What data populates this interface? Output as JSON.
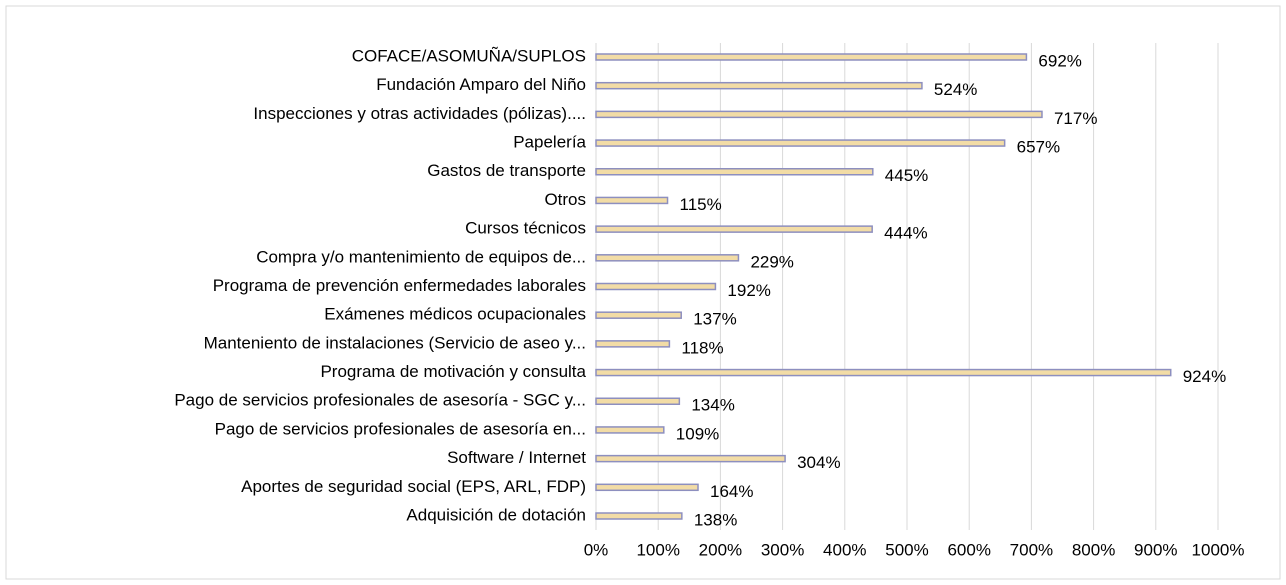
{
  "chart_data": {
    "type": "bar",
    "orientation": "horizontal",
    "categories": [
      "COFACE/ASOMUÑA/SUPLOS",
      "Fundación Amparo del Niño",
      "Inspecciones y otras actividades (pólizas)....",
      "Papelería",
      "Gastos de transporte",
      "Otros",
      "Cursos técnicos",
      "Compra y/o mantenimiento de equipos de...",
      "Programa de prevención enfermedades laborales",
      "Exámenes médicos ocupacionales",
      "Manteniento de instalaciones (Servicio de aseo y...",
      "Programa de motivación y consulta",
      "Pago de servicios profesionales de asesoría - SGC y...",
      "Pago de servicios profesionales de asesoría en...",
      "Software / Internet",
      "Aportes de seguridad social (EPS, ARL, FDP)",
      "Adquisición de dotación"
    ],
    "values": [
      692,
      524,
      717,
      657,
      445,
      115,
      444,
      229,
      192,
      137,
      118,
      924,
      134,
      109,
      304,
      164,
      138
    ],
    "value_labels": [
      "692%",
      "524%",
      "717%",
      "657%",
      "445%",
      "115%",
      "444%",
      "229%",
      "192%",
      "137%",
      "118%",
      "924%",
      "134%",
      "109%",
      "304%",
      "164%",
      "138%"
    ],
    "color": "#f2dca6",
    "edge_color": "#8d8fbf",
    "xlim": [
      0,
      1000
    ],
    "xticks": [
      {
        "value": 0,
        "label": "0%"
      },
      {
        "value": 100,
        "label": "100%"
      },
      {
        "value": 200,
        "label": "200%"
      },
      {
        "value": 300,
        "label": "300%"
      },
      {
        "value": 400,
        "label": "400%"
      },
      {
        "value": 500,
        "label": "500%"
      },
      {
        "value": 600,
        "label": "600%"
      },
      {
        "value": 700,
        "label": "700%"
      },
      {
        "value": 800,
        "label": "800%"
      },
      {
        "value": 900,
        "label": "900%"
      },
      {
        "value": 1000,
        "label": "1000%"
      }
    ],
    "grid": true
  }
}
